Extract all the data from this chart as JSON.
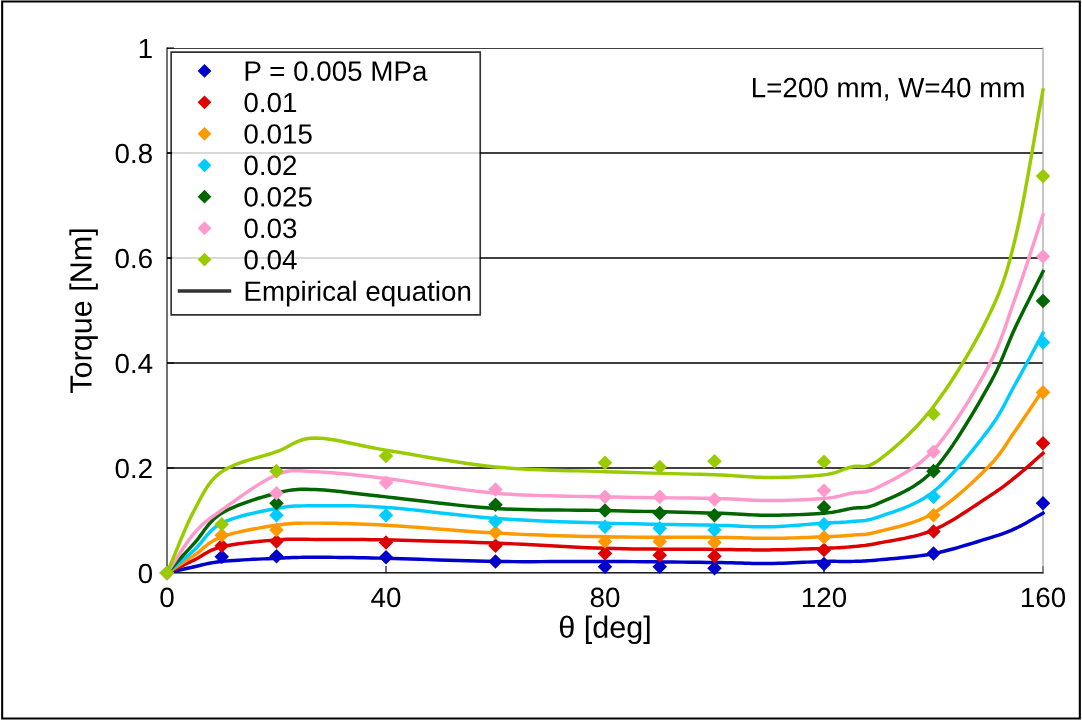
{
  "chart_data": {
    "type": "scatter",
    "xlabel": "θ [deg]",
    "ylabel": "Torque [Nm]",
    "xlim": [
      0,
      160
    ],
    "xticks": [
      0,
      40,
      80,
      120,
      160
    ],
    "ylim": [
      0,
      1
    ],
    "yticks": [
      0,
      0.2,
      0.4,
      0.6,
      0.8,
      1
    ],
    "grid": "y",
    "legend": "top left",
    "marker": "diamond",
    "annotations": [
      "L=200 mm, W=40 mm"
    ],
    "x": [
      0,
      10,
      20,
      40,
      60,
      80,
      90,
      100,
      120,
      140,
      160
    ],
    "series": [
      {
        "name": "P = 0.005 MPa",
        "color": "#0000cc",
        "values": [
          0,
          0.031,
          0.032,
          0.03,
          0.022,
          0.012,
          0.012,
          0.009,
          0.017,
          0.037,
          0.133
        ]
      },
      {
        "name": "0.01",
        "color": "#dd0000",
        "values": [
          0,
          0.052,
          0.06,
          0.058,
          0.052,
          0.037,
          0.034,
          0.032,
          0.044,
          0.079,
          0.247
        ]
      },
      {
        "name": "0.015",
        "color": "#ff9900",
        "values": [
          0,
          0.072,
          0.082,
          null,
          0.077,
          0.06,
          0.06,
          0.058,
          0.068,
          0.11,
          0.344
        ]
      },
      {
        "name": "0.02",
        "color": "#00ccff",
        "values": [
          0,
          null,
          0.11,
          0.11,
          0.098,
          0.088,
          0.085,
          0.082,
          0.093,
          0.145,
          0.439
        ]
      },
      {
        "name": "0.025",
        "color": "#006600",
        "values": [
          0,
          null,
          0.133,
          null,
          0.13,
          0.119,
          0.114,
          0.11,
          0.125,
          0.194,
          0.518
        ]
      },
      {
        "name": "0.03",
        "color": "#ff99cc",
        "values": [
          0,
          null,
          0.152,
          0.172,
          0.159,
          0.145,
          0.145,
          0.14,
          0.157,
          0.231,
          0.603
        ]
      },
      {
        "name": "0.04",
        "color": "#99cc00",
        "values": [
          0,
          0.093,
          0.194,
          0.223,
          null,
          0.21,
          0.202,
          0.213,
          0.212,
          0.303,
          0.756
        ]
      },
      {
        "type": "line",
        "name": "Empirical equation",
        "color": "#333333",
        "marker": "none",
        "values": [
          null,
          null,
          null,
          null,
          null,
          null,
          null,
          null,
          null,
          null,
          null
        ]
      },
      {
        "type": "line",
        "marker": "none",
        "color": "#0000cc",
        "x": [
          0,
          5,
          10,
          20,
          27,
          40,
          60,
          80,
          100,
          110,
          120,
          125,
          130,
          140,
          150,
          155,
          160
        ],
        "values": [
          0,
          0.012,
          0.022,
          0.028,
          0.03,
          0.028,
          0.022,
          0.022,
          0.02,
          0.018,
          0.022,
          0.022,
          0.025,
          0.037,
          0.066,
          0.085,
          0.114
        ]
      },
      {
        "type": "line",
        "marker": "none",
        "color": "#dd0000",
        "x": [
          0,
          5,
          10,
          20,
          27,
          40,
          60,
          80,
          100,
          110,
          120,
          125,
          130,
          140,
          150,
          155,
          160
        ],
        "values": [
          0,
          0.025,
          0.05,
          0.063,
          0.064,
          0.063,
          0.057,
          0.047,
          0.045,
          0.044,
          0.047,
          0.05,
          0.057,
          0.082,
          0.145,
          0.183,
          0.228
        ]
      },
      {
        "type": "line",
        "marker": "none",
        "color": "#ff9900",
        "x": [
          0,
          5,
          10,
          20,
          27,
          40,
          60,
          80,
          100,
          110,
          120,
          125,
          130,
          140,
          150,
          155,
          160
        ],
        "values": [
          0,
          0.034,
          0.069,
          0.091,
          0.095,
          0.091,
          0.076,
          0.069,
          0.068,
          0.066,
          0.069,
          0.072,
          0.079,
          0.114,
          0.202,
          0.272,
          0.349
        ]
      },
      {
        "type": "line",
        "marker": "none",
        "color": "#00ccff",
        "x": [
          0,
          5,
          10,
          20,
          27,
          40,
          60,
          80,
          100,
          110,
          120,
          125,
          130,
          140,
          150,
          155,
          160
        ],
        "values": [
          0,
          0.044,
          0.095,
          0.123,
          0.128,
          0.125,
          0.104,
          0.095,
          0.091,
          0.088,
          0.095,
          0.098,
          0.107,
          0.155,
          0.272,
          0.361,
          0.457
        ]
      },
      {
        "type": "line",
        "marker": "none",
        "color": "#006600",
        "x": [
          0,
          5,
          10,
          20,
          27,
          40,
          60,
          80,
          100,
          110,
          120,
          125,
          130,
          140,
          150,
          155,
          160
        ],
        "values": [
          0,
          0.057,
          0.114,
          0.152,
          0.159,
          0.145,
          0.123,
          0.119,
          0.114,
          0.11,
          0.114,
          0.123,
          0.133,
          0.196,
          0.355,
          0.469,
          0.574
        ]
      },
      {
        "type": "line",
        "marker": "none",
        "color": "#ff99cc",
        "x": [
          0,
          5,
          10,
          20,
          27,
          40,
          60,
          80,
          100,
          110,
          120,
          125,
          130,
          140,
          150,
          155,
          160
        ],
        "values": [
          0,
          0.076,
          0.12,
          0.187,
          0.193,
          0.18,
          0.152,
          0.145,
          0.142,
          0.138,
          0.142,
          0.152,
          0.164,
          0.234,
          0.393,
          0.526,
          0.682
        ]
      },
      {
        "type": "line",
        "marker": "none",
        "color": "#99cc00",
        "x": [
          0,
          5,
          10,
          20,
          27,
          40,
          60,
          80,
          100,
          110,
          120,
          125,
          130,
          140,
          150,
          155,
          160
        ],
        "values": [
          0,
          0.12,
          0.193,
          0.231,
          0.257,
          0.234,
          0.202,
          0.193,
          0.187,
          0.182,
          0.187,
          0.202,
          0.215,
          0.317,
          0.488,
          0.64,
          0.92
        ]
      }
    ]
  }
}
